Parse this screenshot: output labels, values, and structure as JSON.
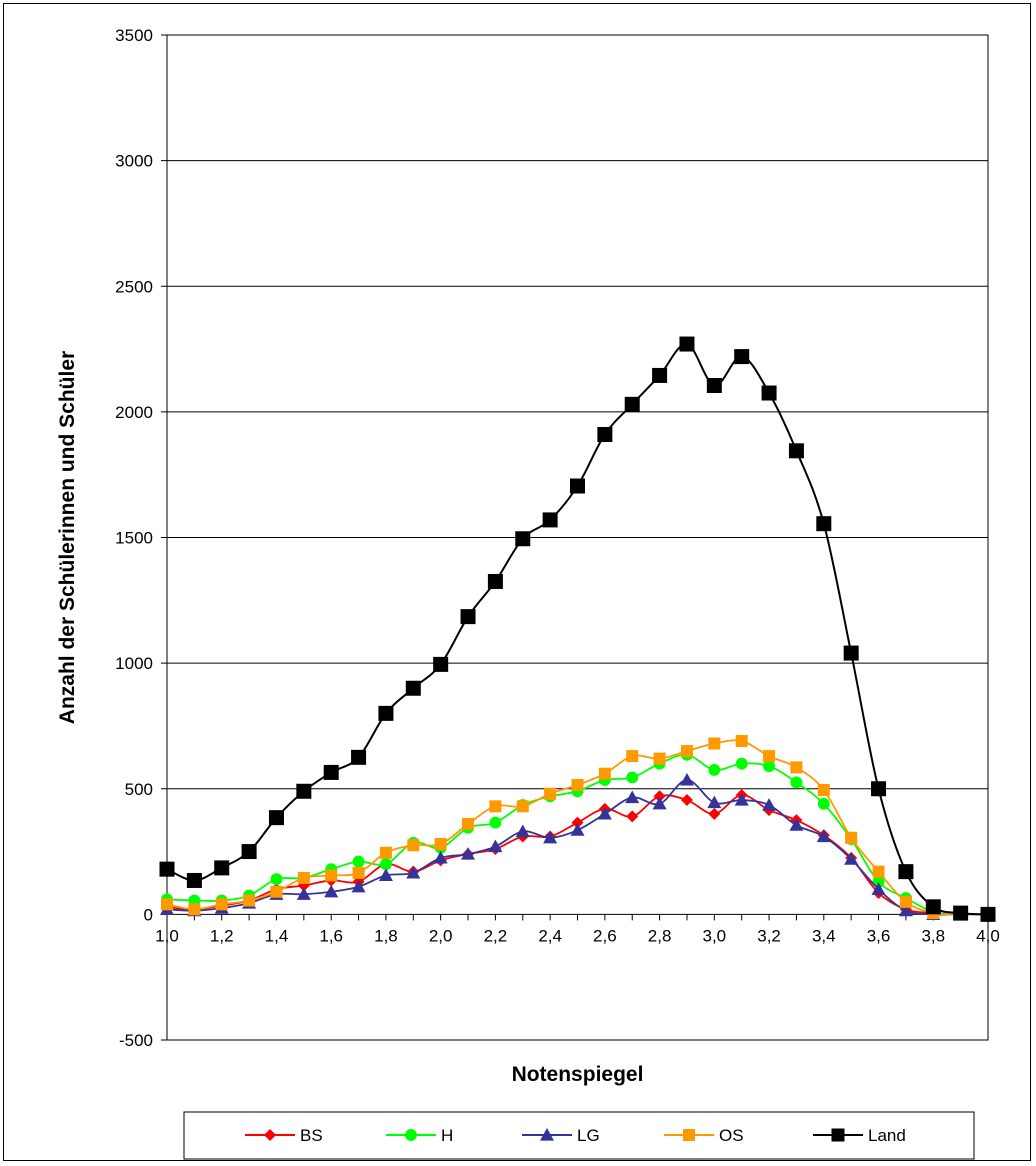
{
  "chart_data": {
    "type": "line",
    "title": "",
    "xlabel": "Notenspiegel",
    "ylabel": "Anzahl der Schülerinnen und Schüler",
    "xlim": [
      1.0,
      4.0
    ],
    "ylim": [
      -500,
      3500
    ],
    "x_ticks": [
      "1,0",
      "1,2",
      "1,4",
      "1,6",
      "1,8",
      "2,0",
      "2,2",
      "2,4",
      "2,6",
      "2,8",
      "3,0",
      "3,2",
      "3,4",
      "3,6",
      "3,8",
      "4,0"
    ],
    "y_ticks": [
      "-500",
      "0",
      "500",
      "1000",
      "1500",
      "2000",
      "2500",
      "3000",
      "3500"
    ],
    "grid": "horizontal",
    "legend_position": "bottom",
    "x": [
      1.0,
      1.1,
      1.2,
      1.3,
      1.4,
      1.5,
      1.6,
      1.7,
      1.8,
      1.9,
      2.0,
      2.1,
      2.2,
      2.3,
      2.4,
      2.5,
      2.6,
      2.7,
      2.8,
      2.9,
      3.0,
      3.1,
      3.2,
      3.3,
      3.4,
      3.5,
      3.6,
      3.7,
      3.8,
      3.9,
      4.0
    ],
    "series": [
      {
        "name": "BS",
        "color": "#ff0000",
        "marker": "diamond",
        "values": [
          30,
          20,
          35,
          55,
          100,
          115,
          135,
          130,
          200,
          170,
          215,
          240,
          260,
          310,
          310,
          365,
          420,
          390,
          470,
          455,
          400,
          475,
          415,
          375,
          315,
          225,
          85,
          20,
          5,
          0,
          0
        ]
      },
      {
        "name": "H",
        "color": "#00ff00",
        "marker": "circle",
        "values": [
          60,
          55,
          55,
          75,
          140,
          145,
          180,
          210,
          200,
          285,
          265,
          345,
          365,
          435,
          470,
          490,
          535,
          545,
          600,
          635,
          575,
          600,
          590,
          525,
          440,
          300,
          130,
          65,
          10,
          0,
          0
        ]
      },
      {
        "name": "LG",
        "color": "#333399",
        "marker": "triangle",
        "values": [
          20,
          15,
          25,
          45,
          80,
          80,
          90,
          110,
          155,
          165,
          225,
          240,
          270,
          330,
          305,
          335,
          400,
          465,
          440,
          535,
          445,
          455,
          435,
          355,
          310,
          220,
          100,
          15,
          0,
          0,
          0
        ]
      },
      {
        "name": "OS",
        "color": "#ff9900",
        "marker": "square",
        "values": [
          40,
          20,
          40,
          55,
          90,
          145,
          155,
          165,
          245,
          275,
          280,
          360,
          430,
          430,
          480,
          515,
          560,
          630,
          620,
          650,
          680,
          690,
          630,
          585,
          495,
          305,
          170,
          50,
          5,
          0,
          0
        ]
      },
      {
        "name": "Land",
        "color": "#000000",
        "marker": "square",
        "values": [
          180,
          135,
          185,
          250,
          385,
          490,
          565,
          625,
          800,
          900,
          995,
          1185,
          1325,
          1495,
          1570,
          1705,
          1910,
          2030,
          2145,
          2270,
          2105,
          2220,
          2075,
          1845,
          1555,
          1040,
          500,
          170,
          30,
          5,
          0
        ]
      }
    ]
  }
}
